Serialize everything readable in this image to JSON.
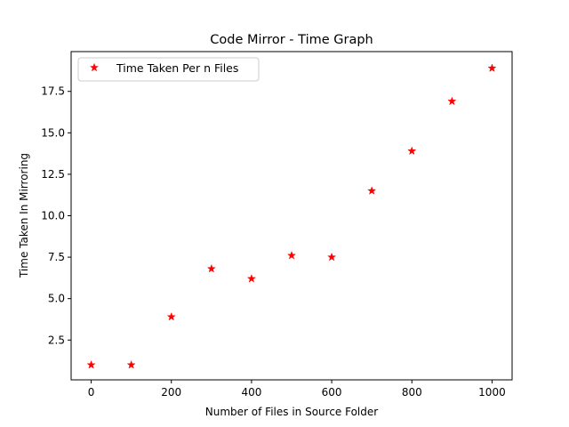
{
  "chart_data": {
    "type": "scatter",
    "title": "Code Mirror - Time Graph",
    "xlabel": "Number of Files in Source Folder",
    "ylabel": "Time Taken In Mirroring",
    "xlim": [
      -50,
      1050
    ],
    "ylim": [
      0.1,
      19.9
    ],
    "xticks": [
      0,
      200,
      400,
      600,
      800,
      1000
    ],
    "xtick_labels": [
      "0",
      "200",
      "400",
      "600",
      "800",
      "1000"
    ],
    "yticks": [
      2.5,
      5.0,
      7.5,
      10.0,
      12.5,
      15.0,
      17.5
    ],
    "ytick_labels": [
      "2.5",
      "5.0",
      "7.5",
      "10.0",
      "12.5",
      "15.0",
      "17.5"
    ],
    "grid": false,
    "legend_position": "top-left",
    "series": [
      {
        "name": "Time Taken Per n Files",
        "marker": "star",
        "color": "#ff0000",
        "x": [
          0,
          100,
          200,
          300,
          400,
          500,
          600,
          700,
          800,
          900,
          1000
        ],
        "y": [
          1.0,
          1.0,
          3.9,
          6.8,
          6.2,
          7.6,
          7.5,
          11.5,
          13.9,
          16.9,
          18.9
        ]
      }
    ]
  }
}
